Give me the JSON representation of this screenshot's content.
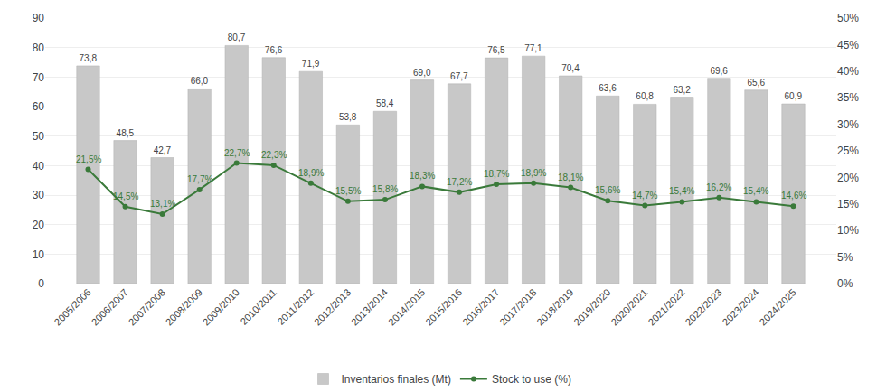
{
  "chart_data": {
    "type": "bar",
    "categories": [
      "2005/2006",
      "2006/2007",
      "2007/2008",
      "2008/2009",
      "2009/2010",
      "2010/2011",
      "2011/2012",
      "2012/2013",
      "2013/2014",
      "2014/2015",
      "2015/2016",
      "2016/2017",
      "2017/2018",
      "2018/2019",
      "2019/2020",
      "2020/2021",
      "2021/2022",
      "2022/2023",
      "2023/2024",
      "2024/2025"
    ],
    "series": [
      {
        "name": "Inventarios finales (Mt)",
        "type": "bar",
        "color": "#c8c8c8",
        "values": [
          73.8,
          48.5,
          42.7,
          66.0,
          80.7,
          76.6,
          71.9,
          53.8,
          58.4,
          69.0,
          67.7,
          76.5,
          77.1,
          70.4,
          63.6,
          60.8,
          63.2,
          69.6,
          65.6,
          60.9
        ],
        "value_labels": [
          "73,8",
          "48,5",
          "42,7",
          "66,0",
          "80,7",
          "76,6",
          "71,9",
          "53,8",
          "58,4",
          "69,0",
          "67,7",
          "76,5",
          "77,1",
          "70,4",
          "63,6",
          "60,8",
          "63,2",
          "69,6",
          "65,6",
          "60,9"
        ]
      },
      {
        "name": "Stock to use (%)",
        "type": "line",
        "axis": "y2",
        "color": "#3a7a3a",
        "marker": "circle",
        "line_style": "solid",
        "values": [
          21.5,
          14.5,
          13.1,
          17.7,
          22.7,
          22.3,
          18.9,
          15.5,
          15.8,
          18.3,
          17.2,
          18.7,
          18.9,
          18.1,
          15.6,
          14.7,
          15.4,
          16.2,
          15.4,
          14.6
        ],
        "value_labels": [
          "21,5%",
          "14,5%",
          "13,1%",
          "17,7%",
          "22,7%",
          "22,3%",
          "18,9%",
          "15,5%",
          "15,8%",
          "18,3%",
          "17,2%",
          "18,7%",
          "18,9%",
          "18,1%",
          "15,6%",
          "14,7%",
          "15,4%",
          "16,2%",
          "15,4%",
          "14,6%"
        ]
      }
    ],
    "ylim": [
      0,
      90
    ],
    "yticks": [
      0,
      10,
      20,
      30,
      40,
      50,
      60,
      70,
      80,
      90
    ],
    "y2lim": [
      0,
      50
    ],
    "y2ticks": [
      {
        "value": 0,
        "label": "0%"
      },
      {
        "value": 5,
        "label": "5%"
      },
      {
        "value": 10,
        "label": "10%"
      },
      {
        "value": 15,
        "label": "15%"
      },
      {
        "value": 20,
        "label": "20%"
      },
      {
        "value": 25,
        "label": "25%"
      },
      {
        "value": 30,
        "label": "30%"
      },
      {
        "value": 35,
        "label": "35%"
      },
      {
        "value": 40,
        "label": "40%"
      },
      {
        "value": 45,
        "label": "45%"
      },
      {
        "value": 50,
        "label": "50%"
      }
    ],
    "grid": true,
    "data_labels": true,
    "legend": "bottom"
  }
}
